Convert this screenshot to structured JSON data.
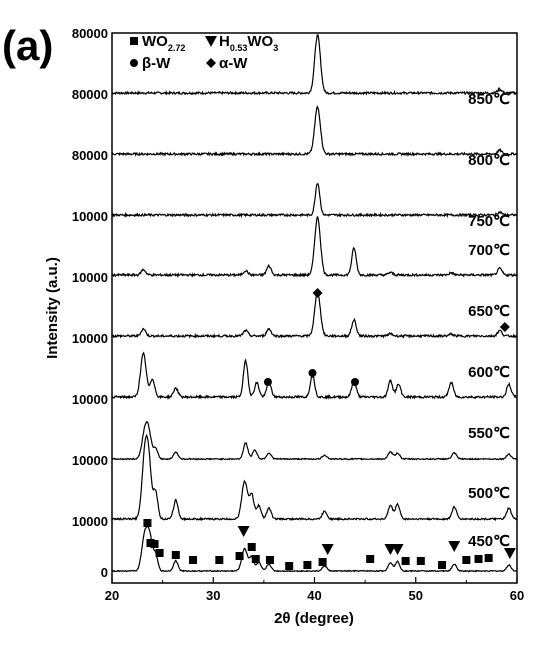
{
  "chart_data": {
    "type": "line",
    "panel_label": "(a)",
    "xlabel": "2θ (degree)",
    "ylabel": "Intensity (a.u.)",
    "xlim": [
      20,
      60
    ],
    "x_ticks": [
      "20",
      "30",
      "40",
      "50",
      "60"
    ],
    "y_tick_labels": [
      "80000",
      "80000",
      "80000",
      "10000",
      "10000",
      "10000",
      "10000",
      "10000",
      "10000",
      "0"
    ],
    "legend": [
      {
        "marker": "square",
        "label": "WO",
        "sub": "2.72",
        "label2": ""
      },
      {
        "marker": "triangle",
        "label": "H",
        "sub": "0.53",
        "label2": "WO",
        "sub2": "3"
      },
      {
        "marker": "circle",
        "label": "β-W",
        "sub": "",
        "label2": ""
      },
      {
        "marker": "diamond",
        "label": "α-W",
        "sub": "",
        "label2": ""
      }
    ],
    "series": [
      {
        "label": "850℃",
        "peaks": [
          [
            40.3,
            1.6
          ],
          [
            58.3,
            0.1
          ]
        ]
      },
      {
        "label": "800℃",
        "peaks": [
          [
            40.3,
            1.3
          ],
          [
            58.3,
            0.1
          ]
        ]
      },
      {
        "label": "750℃",
        "peaks": [
          [
            40.3,
            0.9
          ],
          [
            58.3,
            0.08
          ]
        ]
      },
      {
        "label": "700℃",
        "peaks": [
          [
            23.1,
            0.15
          ],
          [
            33.2,
            0.12
          ],
          [
            35.5,
            0.25
          ],
          [
            40.3,
            1.6
          ],
          [
            43.9,
            0.75
          ],
          [
            47.5,
            0.07
          ],
          [
            53.5,
            0.06
          ],
          [
            58.3,
            0.18
          ]
        ]
      },
      {
        "label": "650℃",
        "peaks": [
          [
            23.1,
            0.2
          ],
          [
            33.2,
            0.15
          ],
          [
            35.5,
            0.2
          ],
          [
            40.3,
            1.2
          ],
          [
            43.9,
            0.45
          ],
          [
            47.5,
            0.06
          ],
          [
            53.5,
            0.05
          ],
          [
            58.3,
            0.15
          ]
        ]
      },
      {
        "label": "600℃",
        "peaks": [
          [
            23.1,
            1.2
          ],
          [
            24.0,
            0.5
          ],
          [
            26.3,
            0.25
          ],
          [
            33.2,
            1.0
          ],
          [
            34.3,
            0.4
          ],
          [
            35.5,
            0.4
          ],
          [
            39.8,
            0.6
          ],
          [
            43.9,
            0.45
          ],
          [
            47.5,
            0.45
          ],
          [
            48.3,
            0.35
          ],
          [
            53.5,
            0.4
          ],
          [
            59.2,
            0.35
          ]
        ]
      },
      {
        "label": "550℃",
        "peaks": [
          [
            23.2,
            1.1
          ],
          [
            23.6,
            1.3
          ],
          [
            24.3,
            0.5
          ],
          [
            26.3,
            0.35
          ],
          [
            33.2,
            0.8
          ],
          [
            34.1,
            0.45
          ],
          [
            35.5,
            0.3
          ],
          [
            41.0,
            0.2
          ],
          [
            47.5,
            0.35
          ],
          [
            48.2,
            0.3
          ],
          [
            53.8,
            0.3
          ],
          [
            59.2,
            0.25
          ]
        ]
      },
      {
        "label": "500℃",
        "peaks": [
          [
            23.2,
            1.9
          ],
          [
            23.6,
            2.1
          ],
          [
            24.3,
            1.0
          ],
          [
            26.3,
            0.7
          ],
          [
            33.1,
            1.4
          ],
          [
            33.8,
            0.9
          ],
          [
            34.5,
            0.5
          ],
          [
            35.5,
            0.4
          ],
          [
            41.0,
            0.3
          ],
          [
            47.5,
            0.5
          ],
          [
            48.2,
            0.55
          ],
          [
            53.8,
            0.45
          ],
          [
            59.2,
            0.4
          ]
        ]
      },
      {
        "label": "450℃",
        "peaks": [
          [
            23.2,
            1.9
          ],
          [
            23.7,
            2.0
          ],
          [
            24.3,
            0.9
          ],
          [
            26.3,
            0.6
          ],
          [
            33.1,
            1.3
          ],
          [
            33.8,
            0.8
          ],
          [
            34.5,
            0.5
          ],
          [
            35.5,
            0.4
          ],
          [
            41.0,
            0.3
          ],
          [
            47.5,
            0.5
          ],
          [
            48.2,
            0.55
          ],
          [
            53.8,
            0.4
          ],
          [
            59.2,
            0.35
          ]
        ]
      }
    ],
    "markers": [
      {
        "type": "diamond",
        "series": "650℃",
        "x": [
          40.3,
          58.8
        ]
      },
      {
        "type": "circle",
        "series": "600℃",
        "x": [
          35.4,
          39.8,
          44.0
        ]
      },
      {
        "type": "square",
        "series": "450℃",
        "x": [
          23.5,
          23.8,
          24.2,
          24.7,
          26.3,
          28.0,
          30.6,
          32.6,
          33.8,
          34.2,
          35.6,
          37.5,
          39.3,
          40.8,
          45.5,
          49.0,
          50.5,
          52.6,
          55.0,
          56.2,
          57.2
        ]
      },
      {
        "type": "triangle",
        "series": "450℃",
        "x": [
          33.0,
          41.3,
          47.5,
          48.2,
          53.8,
          59.3
        ]
      }
    ]
  }
}
